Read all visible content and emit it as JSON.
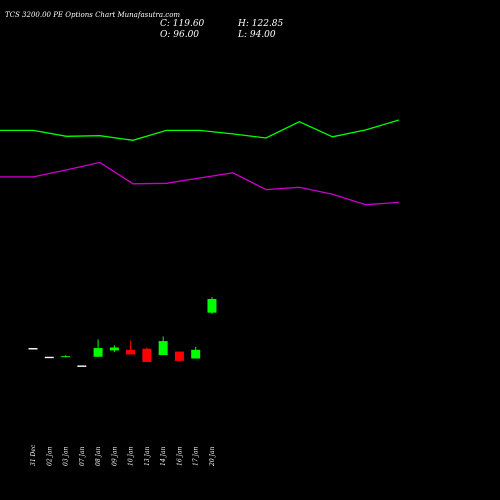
{
  "chart_data": {
    "type": "candlestick",
    "title": "TCS 3200.00 PE Options Chart Munafasutra.com",
    "ohlc": {
      "close": "C: 119.60",
      "high": "H: 122.85",
      "open": "O: 96.00",
      "low": "L: 94.00"
    },
    "categories": [
      "31 Dec",
      "02 Jan",
      "03 Jan",
      "07 Jan",
      "08 Jan",
      "09 Jan",
      "10 Jan",
      "13 Jan",
      "14 Jan",
      "16 Jan",
      "17 Jan",
      "20 Jan"
    ],
    "candles": [
      {
        "date": "31 Dec",
        "open": 34.0,
        "high": 34.0,
        "low": 34.0,
        "close": 34.0
      },
      {
        "date": "02 Jan",
        "open": 19.0,
        "high": 19.0,
        "low": 19.0,
        "close": 19.0
      },
      {
        "date": "03 Jan",
        "open": 20.0,
        "high": 22.5,
        "low": 19.5,
        "close": 21.0
      },
      {
        "date": "07 Jan",
        "open": 4.0,
        "high": 4.0,
        "low": 4.0,
        "close": 4.0
      },
      {
        "date": "08 Jan",
        "open": 20.0,
        "high": 50.0,
        "low": 20.0,
        "close": 35.0
      },
      {
        "date": "09 Jan",
        "open": 31.0,
        "high": 40.0,
        "low": 28.0,
        "close": 36.0
      },
      {
        "date": "10 Jan",
        "open": 32.0,
        "high": 48.0,
        "low": 24.0,
        "close": 24.0
      },
      {
        "date": "13 Jan",
        "open": 34.0,
        "high": 36.0,
        "low": 11.0,
        "close": 11.0
      },
      {
        "date": "14 Jan",
        "open": 23.0,
        "high": 55.0,
        "low": 23.0,
        "close": 47.0
      },
      {
        "date": "16 Jan",
        "open": 29.0,
        "high": 29.0,
        "low": 12.0,
        "close": 13.0
      },
      {
        "date": "17 Jan",
        "open": 17.0,
        "high": 37.0,
        "low": 17.0,
        "close": 32.0
      },
      {
        "date": "20 Jan",
        "open": 96.0,
        "high": 122.85,
        "low": 94.0,
        "close": 119.6
      }
    ],
    "upper_line": [
      410,
      410,
      400,
      401,
      393,
      410,
      410,
      404,
      397,
      425,
      399,
      411,
      428
    ],
    "lower_line": [
      330,
      330,
      342,
      355,
      318,
      319,
      328,
      337,
      308,
      312,
      300,
      282,
      286
    ],
    "ylim": [
      -20,
      540
    ],
    "colors": {
      "background": "#000000",
      "up": "#00ff00",
      "down": "#ff0000",
      "flat": "#ffffff",
      "upper_line": "#00ff00",
      "lower_line": "#cc00cc"
    }
  }
}
